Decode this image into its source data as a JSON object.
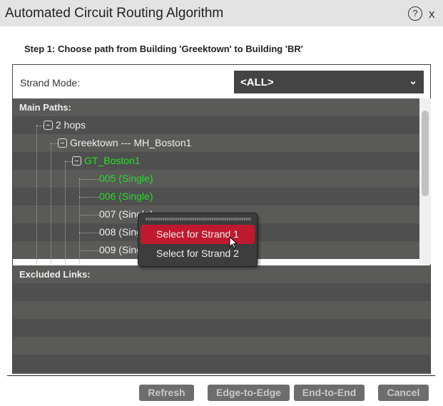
{
  "window": {
    "title": "Automated Circuit Routing Algorithm",
    "help_icon": "?",
    "close_label": "x"
  },
  "step": "Step 1: Choose path from Building 'Greektown' to Building 'BR'",
  "strand_mode": {
    "label": "Strand Mode:",
    "value": "<ALL>"
  },
  "tree": {
    "header": "Main Paths:",
    "nodes": [
      {
        "label": "2 hops",
        "level": 0,
        "color": "#eeeeee"
      },
      {
        "label": "Greektown --- MH_Boston1",
        "level": 1,
        "color": "#eeeeee"
      },
      {
        "label": "GT_Boston1",
        "level": 2,
        "color": "#22e022"
      },
      {
        "label": "005 (Single)",
        "level": 3,
        "color": "#22e022"
      },
      {
        "label": "006 (Single)",
        "level": 3,
        "color": "#22e022"
      },
      {
        "label": "007 (Single)",
        "level": 3,
        "color": "#eeeeee"
      },
      {
        "label": "008 (Single)",
        "level": 3,
        "color": "#eeeeee"
      },
      {
        "label": "009 (Single)",
        "level": 3,
        "color": "#eeeeee"
      }
    ]
  },
  "excluded": {
    "header": "Excluded Links:"
  },
  "context_menu": {
    "items": [
      "Select for Strand 1",
      "Select for Strand 2"
    ],
    "active": 0,
    "accent": "#c0192f"
  },
  "buttons": {
    "refresh": "Refresh",
    "edge": "Edge-to-Edge",
    "end": "End-to-End",
    "cancel": "Cancel"
  }
}
